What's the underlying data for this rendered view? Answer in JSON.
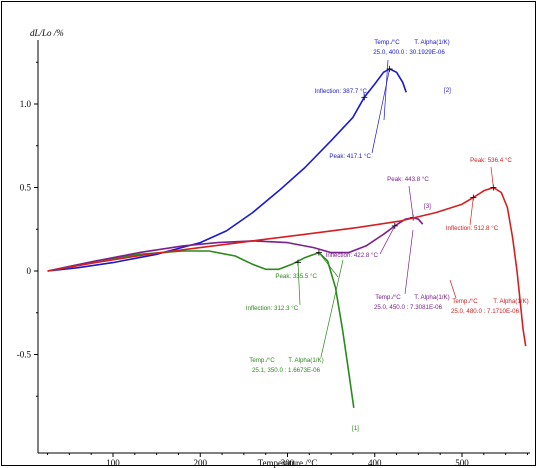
{
  "chart_data": {
    "type": "line",
    "ylabel": "dL/Lo /%",
    "xlabel": "Temperature /°C",
    "xlim": [
      20,
      580
    ],
    "ylim": [
      -0.9,
      1.3
    ],
    "x_ticks": [
      "100",
      "200",
      "300",
      "400",
      "500"
    ],
    "y_ticks": [
      "1.0",
      "0.5",
      "0",
      "-0.5"
    ],
    "grid": false,
    "legend": "none",
    "series": [
      {
        "color": "#1a1acc",
        "points": [
          [
            25,
            0
          ],
          [
            60,
            0.02
          ],
          [
            100,
            0.05
          ],
          [
            150,
            0.1
          ],
          [
            200,
            0.17
          ],
          [
            230,
            0.24
          ],
          [
            260,
            0.35
          ],
          [
            290,
            0.48
          ],
          [
            320,
            0.62
          ],
          [
            350,
            0.78
          ],
          [
            375,
            0.92
          ],
          [
            388,
            1.04
          ],
          [
            400,
            1.12
          ],
          [
            410,
            1.19
          ],
          [
            417,
            1.21
          ],
          [
            425,
            1.19
          ],
          [
            432,
            1.13
          ],
          [
            436,
            1.07
          ]
        ],
        "markers": [
          [
            388,
            1.04
          ],
          [
            417,
            1.21
          ]
        ],
        "end_label": "[2]",
        "annotations": [
          {
            "id": "b-infl",
            "text": "Inflection: 387.7 °C"
          },
          {
            "id": "b-peak",
            "text": "Peak: 417.1 °C"
          },
          {
            "id": "b-temp",
            "text": "Temp./°C"
          },
          {
            "id": "b-alpha",
            "text": "T. Alpha(1/K)"
          },
          {
            "id": "b-vals",
            "text": "25.0, 400.0 :   30.1929E-06"
          }
        ]
      },
      {
        "color": "#2a8a1a",
        "points": [
          [
            25,
            0
          ],
          [
            80,
            0.06
          ],
          [
            130,
            0.1
          ],
          [
            180,
            0.12
          ],
          [
            210,
            0.12
          ],
          [
            240,
            0.09
          ],
          [
            260,
            0.04
          ],
          [
            275,
            0.01
          ],
          [
            290,
            0.01
          ],
          [
            305,
            0.04
          ],
          [
            320,
            0.08
          ],
          [
            336,
            0.11
          ],
          [
            346,
            0.06
          ],
          [
            355,
            -0.1
          ],
          [
            363,
            -0.35
          ],
          [
            370,
            -0.6
          ],
          [
            376,
            -0.82
          ]
        ],
        "markers": [
          [
            312,
            0.05
          ],
          [
            336,
            0.11
          ]
        ],
        "end_label": "[1]",
        "annotations": [
          {
            "id": "g-infl",
            "text": "Inflection: 312.3 °C"
          },
          {
            "id": "g-peak",
            "text": "Peak: 335.5 °C"
          },
          {
            "id": "g-temp",
            "text": "Temp./°C"
          },
          {
            "id": "g-alpha",
            "text": "T. Alpha(1/K)"
          },
          {
            "id": "g-vals",
            "text": "25.1, 350.0 :   1.6673E-06"
          }
        ]
      },
      {
        "color": "#7b1f8f",
        "points": [
          [
            25,
            0
          ],
          [
            80,
            0.06
          ],
          [
            130,
            0.11
          ],
          [
            180,
            0.15
          ],
          [
            220,
            0.17
          ],
          [
            260,
            0.18
          ],
          [
            300,
            0.17
          ],
          [
            330,
            0.14
          ],
          [
            350,
            0.11
          ],
          [
            370,
            0.11
          ],
          [
            390,
            0.15
          ],
          [
            410,
            0.22
          ],
          [
            423,
            0.27
          ],
          [
            435,
            0.31
          ],
          [
            444,
            0.32
          ],
          [
            450,
            0.31
          ],
          [
            455,
            0.28
          ]
        ],
        "markers": [
          [
            423,
            0.27
          ],
          [
            444,
            0.32
          ]
        ],
        "end_label": "[3]",
        "annotations": [
          {
            "id": "p-infl",
            "text": "Inflection: 422.8 °C"
          },
          {
            "id": "p-peak",
            "text": "Peak: 443.8 °C"
          },
          {
            "id": "p-temp",
            "text": "Temp./°C"
          },
          {
            "id": "p-alpha",
            "text": "T. Alpha(1/K)"
          },
          {
            "id": "p-vals",
            "text": "25.0, 450.0 :   7.3081E-06"
          }
        ]
      },
      {
        "color": "#d42020",
        "points": [
          [
            25,
            0
          ],
          [
            80,
            0.05
          ],
          [
            140,
            0.1
          ],
          [
            200,
            0.14
          ],
          [
            260,
            0.18
          ],
          [
            320,
            0.22
          ],
          [
            380,
            0.26
          ],
          [
            430,
            0.3
          ],
          [
            470,
            0.35
          ],
          [
            500,
            0.4
          ],
          [
            513,
            0.44
          ],
          [
            525,
            0.48
          ],
          [
            536,
            0.5
          ],
          [
            545,
            0.47
          ],
          [
            552,
            0.38
          ],
          [
            558,
            0.2
          ],
          [
            563,
            0
          ],
          [
            567,
            -0.2
          ],
          [
            570,
            -0.35
          ],
          [
            573,
            -0.45
          ]
        ],
        "markers": [
          [
            513,
            0.44
          ],
          [
            536,
            0.5
          ]
        ],
        "end_label": "[4]",
        "annotations": [
          {
            "id": "r-infl",
            "text": "Inflection: 512.8 °C"
          },
          {
            "id": "r-peak",
            "text": "Peak: 536.4 °C"
          },
          {
            "id": "r-temp",
            "text": "Temp./°C"
          },
          {
            "id": "r-alpha",
            "text": "T. Alpha(1/K)"
          },
          {
            "id": "r-vals",
            "text": "25.0, 480.0 :   7.1710E-06"
          }
        ]
      }
    ]
  }
}
